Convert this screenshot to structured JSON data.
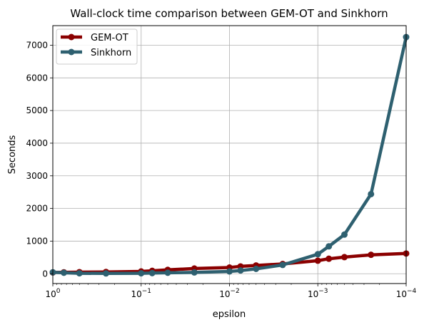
{
  "chart_data": {
    "type": "line",
    "title": "Wall-clock time comparison between GEM-OT and Sinkhorn",
    "xlabel": "epsilon",
    "ylabel": "Seconds",
    "xscale": "log",
    "x_reversed": true,
    "xlim": [
      1,
      0.0001
    ],
    "ylim": [
      -300,
      7600
    ],
    "grid": true,
    "legend_position": "upper-left",
    "x_ticks": [
      {
        "value": 1,
        "base": "10",
        "exp": "0"
      },
      {
        "value": 0.1,
        "base": "10",
        "exp": "−1"
      },
      {
        "value": 0.01,
        "base": "10",
        "exp": "−2"
      },
      {
        "value": 0.001,
        "base": "10",
        "exp": "−3"
      },
      {
        "value": 0.0001,
        "base": "10",
        "exp": "−4"
      }
    ],
    "y_ticks": [
      0,
      1000,
      2000,
      3000,
      4000,
      5000,
      6000,
      7000
    ],
    "x": [
      1,
      0.75,
      0.5,
      0.25,
      0.1,
      0.075,
      0.05,
      0.025,
      0.01,
      0.0075,
      0.005,
      0.0025,
      0.001,
      0.00075,
      0.0005,
      0.00025,
      0.0001
    ],
    "series": [
      {
        "name": "GEM-OT",
        "color": "#8b0000",
        "values": [
          40,
          45,
          50,
          55,
          70,
          90,
          120,
          160,
          190,
          225,
          255,
          300,
          400,
          460,
          510,
          580,
          620
        ]
      },
      {
        "name": "Sinkhorn",
        "color": "#2e6070",
        "values": [
          45,
          30,
          15,
          10,
          15,
          20,
          30,
          40,
          70,
          100,
          150,
          270,
          600,
          840,
          1200,
          2440,
          7250
        ]
      }
    ]
  }
}
